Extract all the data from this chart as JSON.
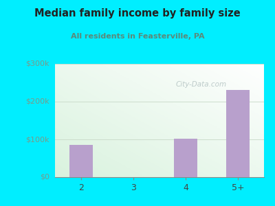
{
  "categories": [
    "2",
    "3",
    "4",
    "5+"
  ],
  "values": [
    85000,
    0,
    101000,
    231000
  ],
  "bar_color": "#b8a0cc",
  "title": "Median family income by family size",
  "subtitle": "All residents in Feasterville, PA",
  "title_color": "#222222",
  "subtitle_color": "#5a8a7a",
  "outer_bg": "#00eeff",
  "ylabel_ticks": [
    "$0",
    "$100k",
    "$200k",
    "$300k"
  ],
  "ytick_values": [
    0,
    100000,
    200000,
    300000
  ],
  "ylim": [
    0,
    300000
  ],
  "watermark": "City-Data.com",
  "tick_label_color": "#7a9a8a",
  "grid_color": "#ccddcc",
  "bottom_color": "#00eeff"
}
